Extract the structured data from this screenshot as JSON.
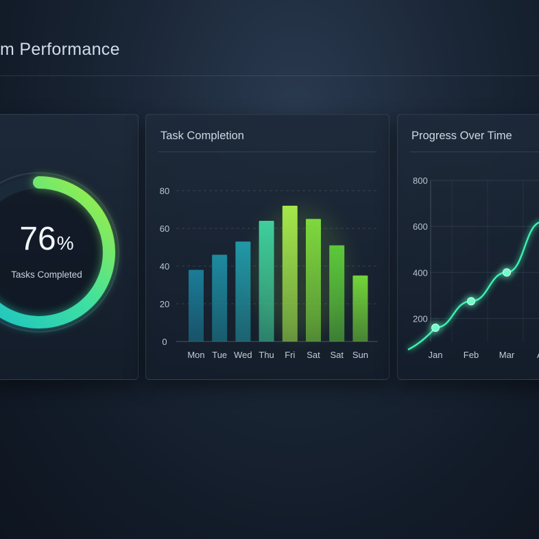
{
  "page": {
    "title": "m Performance"
  },
  "gauge": {
    "value": "76",
    "unit": "%",
    "label": "Tasks Completed",
    "fraction": 0.76,
    "colors": {
      "start": "#19c0c6",
      "mid": "#3fe0a0",
      "end": "#a6f03c",
      "track": "#1b2a38"
    }
  },
  "bar_card": {
    "title": "Task Completion"
  },
  "line_card": {
    "title": "Progress Over Time"
  },
  "chart_data": [
    {
      "type": "bar",
      "title": "Task Completion",
      "categories": [
        "Mon",
        "Tue",
        "Wed",
        "Thu",
        "Fri",
        "Sat",
        "Sat",
        "Sun"
      ],
      "values": [
        38,
        46,
        53,
        64,
        72,
        65,
        51,
        35
      ],
      "ylim": [
        0,
        80
      ],
      "yticks": [
        0,
        20,
        40,
        60,
        80
      ],
      "grid": true,
      "colors": [
        "#1a7c98",
        "#1d8aa0",
        "#2198a6",
        "#3fcf9c",
        "#a4e84a",
        "#7ed93c",
        "#5cc93a",
        "#72d43a"
      ]
    },
    {
      "type": "line",
      "title": "Progress Over Time",
      "categories": [
        "Jan",
        "Feb",
        "Mar",
        "Ap"
      ],
      "values": [
        160,
        275,
        400,
        620
      ],
      "marked_points": [
        0,
        1,
        2
      ],
      "ylim": [
        100,
        800
      ],
      "yticks": [
        200,
        400,
        600,
        800
      ],
      "grid": true,
      "colors": {
        "line": "#3cf0b0",
        "point": "#6effc8"
      }
    }
  ]
}
